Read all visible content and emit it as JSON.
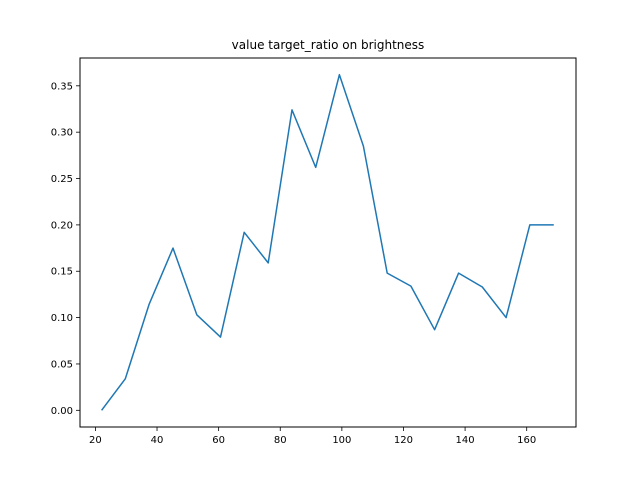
{
  "chart_data": {
    "type": "line",
    "title": "value target_ratio on brightness",
    "xlabel": "",
    "ylabel": "",
    "xlim": [
      15,
      176
    ],
    "ylim": [
      -0.018,
      0.38
    ],
    "xticks": [
      20,
      40,
      60,
      80,
      100,
      120,
      140,
      160
    ],
    "yticks": [
      0.0,
      0.05,
      0.1,
      0.15,
      0.2,
      0.25,
      0.3,
      0.35
    ],
    "ytick_labels": [
      "0.00",
      "0.05",
      "0.10",
      "0.15",
      "0.20",
      "0.25",
      "0.30",
      "0.35"
    ],
    "grid": false,
    "series": [
      {
        "color": "#1f77b4",
        "x": [
          22,
          29.7,
          37.4,
          45.2,
          52.9,
          60.6,
          68.3,
          76.1,
          83.8,
          91.5,
          99.2,
          107.0,
          114.7,
          122.4,
          130.1,
          137.9,
          145.6,
          153.3,
          161.0,
          168.8
        ],
        "y": [
          0.0,
          0.034,
          0.114,
          0.175,
          0.103,
          0.079,
          0.192,
          0.159,
          0.324,
          0.262,
          0.362,
          0.285,
          0.148,
          0.134,
          0.087,
          0.148,
          0.133,
          0.1,
          0.2,
          0.2
        ]
      }
    ]
  }
}
